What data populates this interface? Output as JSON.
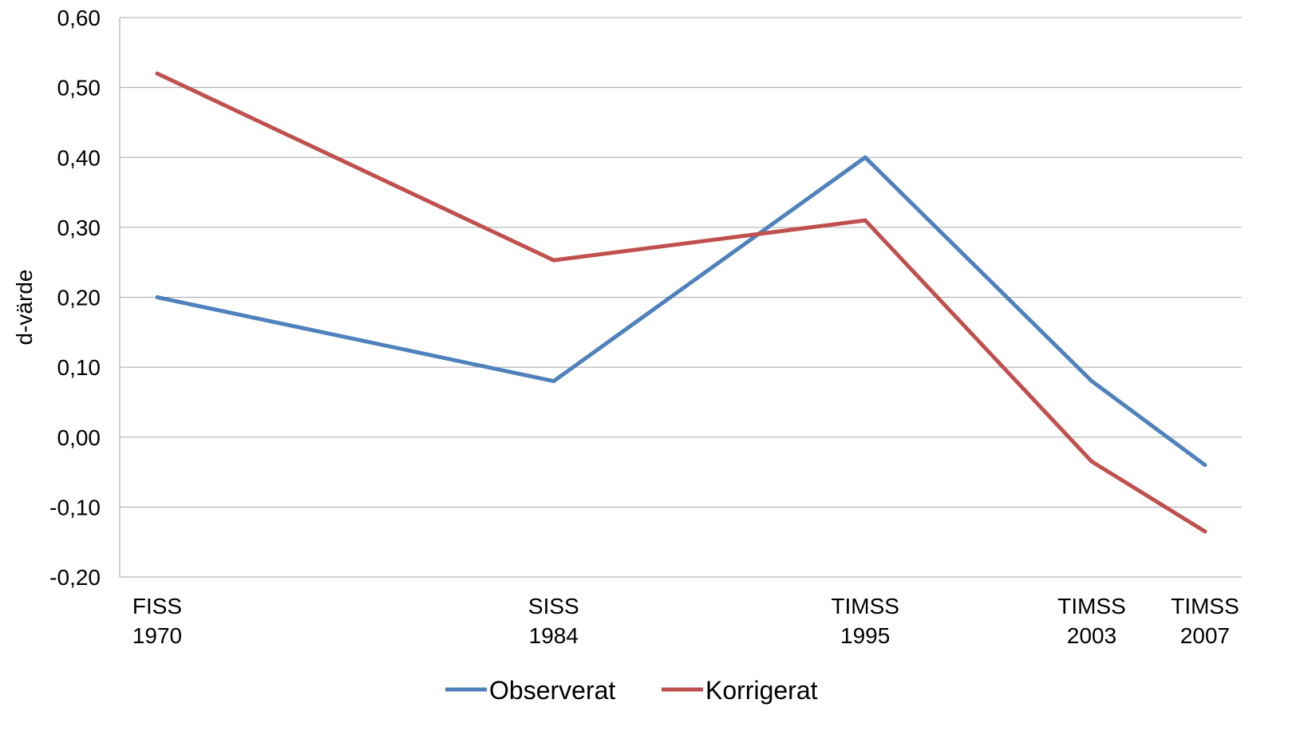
{
  "chart_data": {
    "type": "line",
    "title": "",
    "xlabel": "",
    "ylabel": "d-värde",
    "ylim": [
      -0.2,
      0.6
    ],
    "yticks": [
      0.6,
      0.5,
      0.4,
      0.3,
      0.2,
      0.1,
      0.0,
      -0.1,
      -0.2
    ],
    "ytick_labels": [
      "0,60",
      "0,50",
      "0,40",
      "0,30",
      "0,20",
      "0,10",
      "0,00",
      "-0,10",
      "-0,20"
    ],
    "x": [
      1970,
      1984,
      1995,
      2003,
      2007
    ],
    "categories": [
      {
        "name": "FISS",
        "year": "1970"
      },
      {
        "name": "SISS",
        "year": "1984"
      },
      {
        "name": "TIMSS",
        "year": "1995"
      },
      {
        "name": "TIMSS",
        "year": "2003"
      },
      {
        "name": "TIMSS",
        "year": "2007"
      }
    ],
    "series": [
      {
        "name": "Observerat",
        "color": "#4f81bd",
        "values": [
          0.2,
          0.08,
          0.4,
          0.08,
          -0.04
        ]
      },
      {
        "name": "Korrigerat",
        "color": "#c0504d",
        "values": [
          0.52,
          0.253,
          0.31,
          -0.035,
          -0.135
        ]
      }
    ],
    "grid": true,
    "gridline_color": "#a6a6a6",
    "legend_position": "bottom-center"
  }
}
